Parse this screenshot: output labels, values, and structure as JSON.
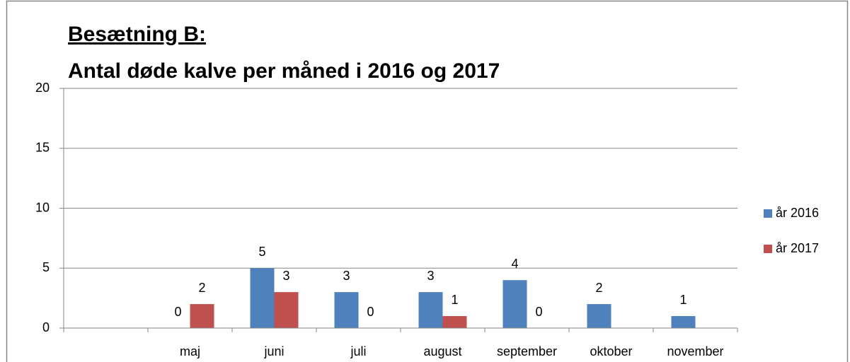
{
  "chart_data": {
    "type": "bar",
    "title": "Besætning B:",
    "subtitle": "Antal døde kalve per måned i 2016 og 2017",
    "categories": [
      null,
      "maj",
      "juni",
      "juli",
      "august",
      "september",
      "oktober",
      "november"
    ],
    "series": [
      {
        "name": "år 2016",
        "color": "#4f81bd",
        "values": [
          null,
          0,
          5,
          3,
          3,
          4,
          2,
          1
        ]
      },
      {
        "name": "år 2017",
        "color": "#c0504d",
        "values": [
          null,
          2,
          3,
          0,
          1,
          0,
          null,
          null
        ]
      }
    ],
    "ylim": [
      0,
      20
    ],
    "yticks": [
      0,
      5,
      10,
      15,
      20
    ],
    "grid": true,
    "legend": "right"
  }
}
